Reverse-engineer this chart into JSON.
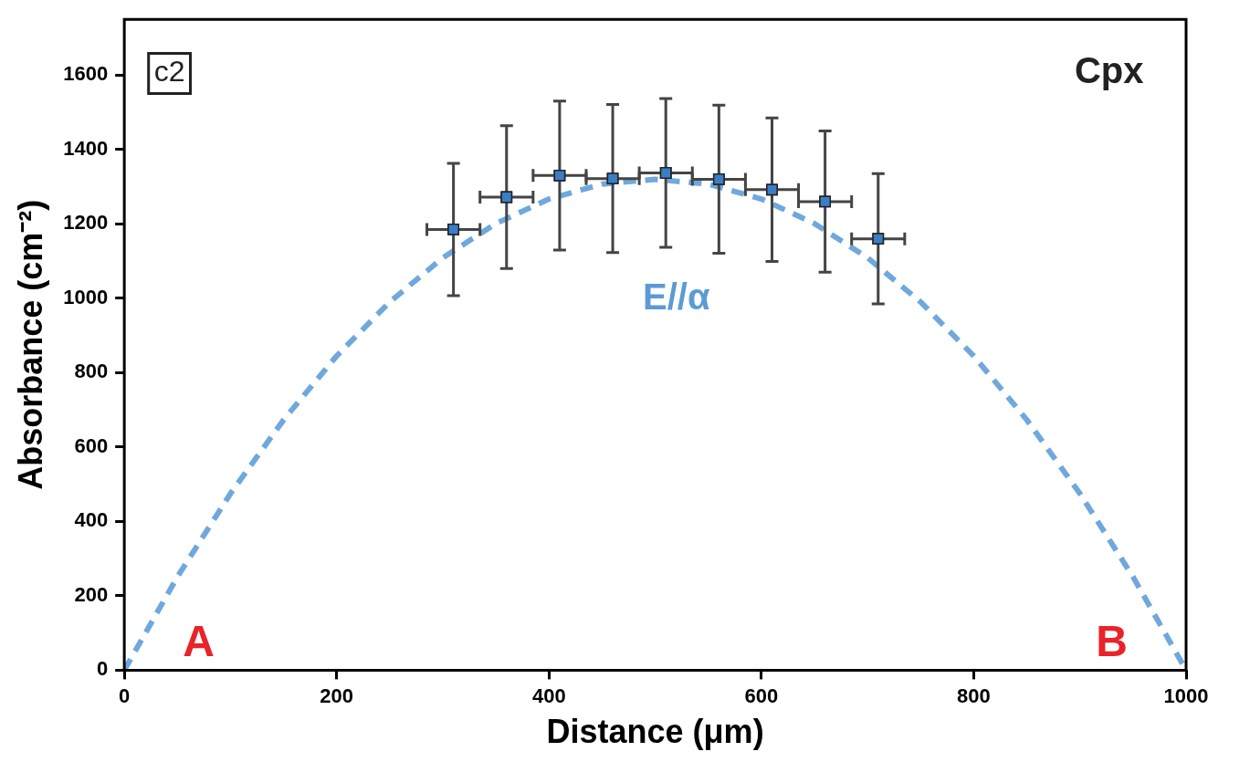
{
  "chart_data": {
    "type": "scatter",
    "xlabel": "Distance (μm)",
    "ylabel": "Absorbance (cm⁻²)",
    "xlim": [
      0,
      1000
    ],
    "xticks": [
      0,
      200,
      400,
      600,
      800,
      1000
    ],
    "ylim": [
      0,
      1750
    ],
    "yticks": [
      0,
      200,
      400,
      600,
      800,
      1000,
      1200,
      1400,
      1600
    ],
    "grid": false,
    "legend": false,
    "marker": "square",
    "series": [
      {
        "type": "scatter",
        "color": "#3a7fc6",
        "x": [
          310,
          360,
          410,
          460,
          510,
          560,
          610,
          660,
          710
        ],
        "values": [
          1185,
          1272,
          1330,
          1322,
          1337,
          1320,
          1292,
          1260,
          1160
        ],
        "errors": [
          178,
          192,
          200,
          199,
          200,
          199,
          193,
          190,
          175
        ],
        "xerrors": [
          25,
          25,
          25,
          25,
          25,
          25,
          25,
          25,
          25
        ]
      },
      {
        "type": "line",
        "color": "#6fa8dc",
        "line_style": "dashed",
        "marker": "none",
        "x": [
          0,
          50,
          100,
          150,
          200,
          250,
          300,
          350,
          400,
          450,
          500,
          550,
          600,
          650,
          700,
          750,
          800,
          850,
          900,
          950,
          1000
        ],
        "values": [
          0,
          251,
          475,
          673,
          845,
          990,
          1109,
          1201,
          1267,
          1307,
          1320,
          1307,
          1267,
          1201,
          1109,
          990,
          845,
          673,
          475,
          251,
          0
        ]
      }
    ],
    "annotations": [
      "c2",
      "Cpx",
      "E//α",
      "A",
      "B"
    ]
  }
}
